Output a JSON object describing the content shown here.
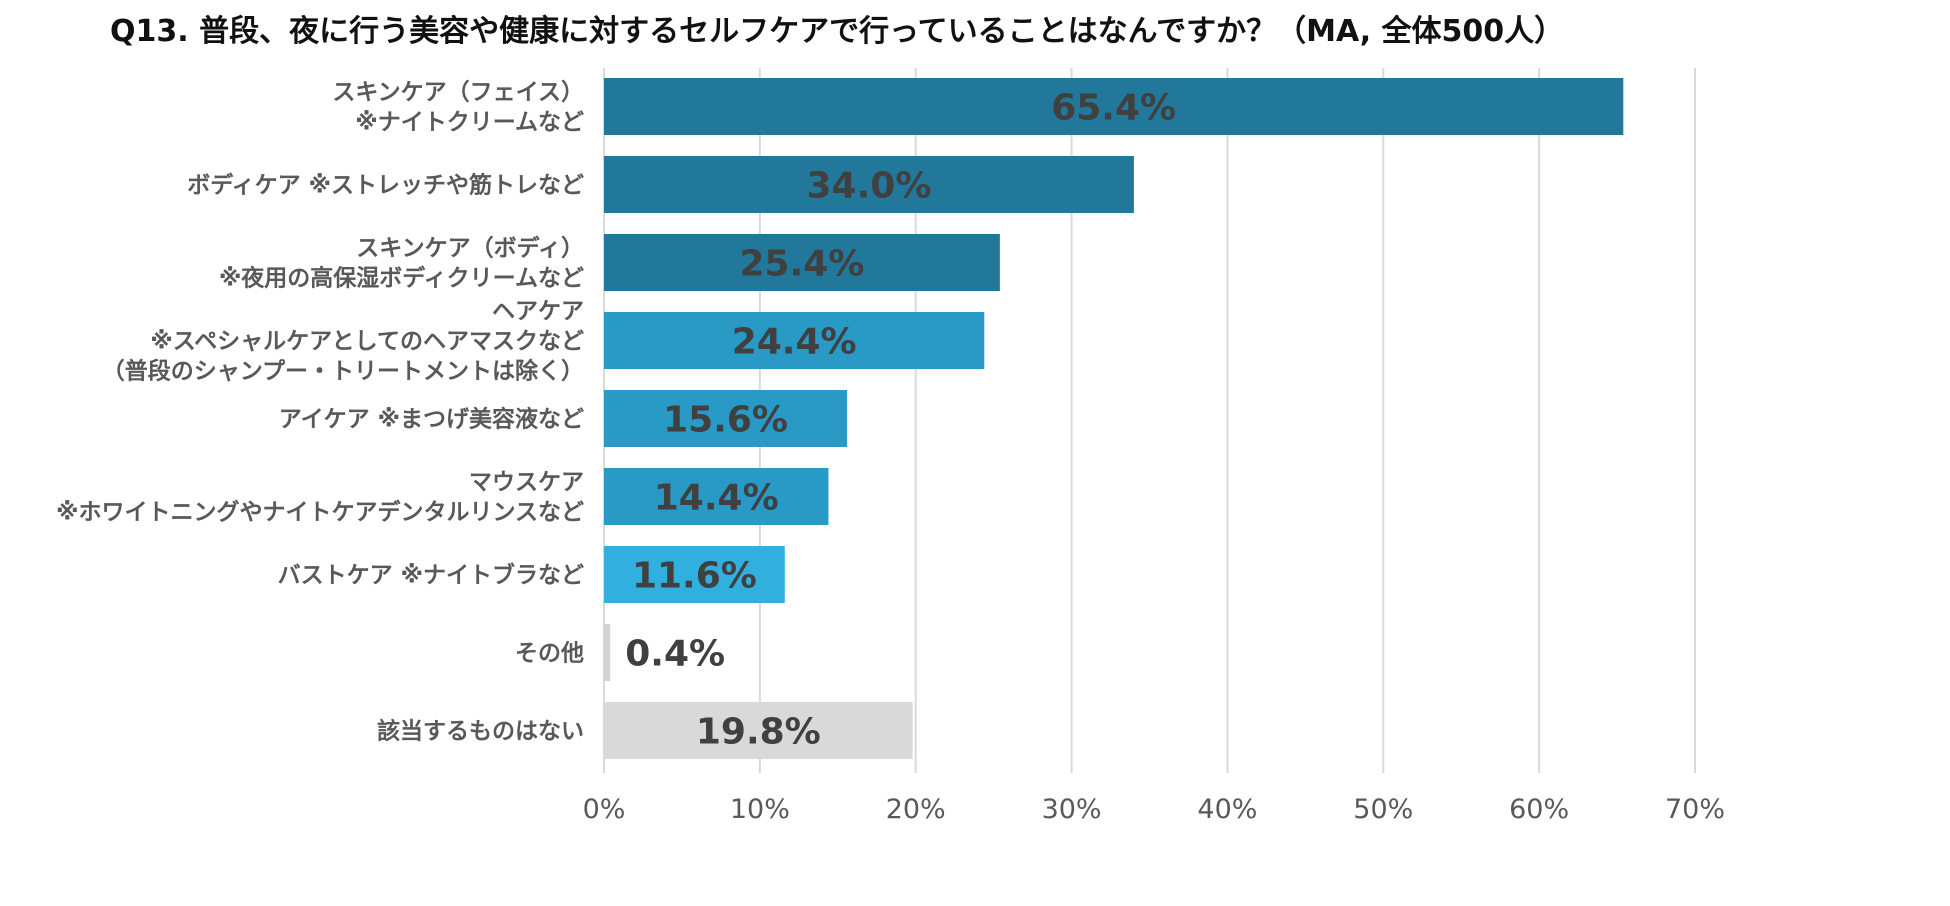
{
  "chart_data": {
    "type": "bar",
    "orientation": "horizontal",
    "title": "Q13. 普段、夜に行う美容や健康に対するセルフケアで行っていることはなんですか？（MA, 全体500人）",
    "categories": [
      [
        "スキンケア（フェイス）",
        "※ナイトクリームなど"
      ],
      [
        "ボディケア ※ストレッチや筋トレなど"
      ],
      [
        "スキンケア（ボディ）",
        "※夜用の高保湿ボディクリームなど"
      ],
      [
        "ヘアケア",
        "※スペシャルケアとしてのヘアマスクなど",
        "（普段のシャンプー・トリートメントは除く）"
      ],
      [
        "アイケア ※まつげ美容液など"
      ],
      [
        "マウスケア",
        "※ホワイトニングやナイトケアデンタルリンスなど"
      ],
      [
        "バストケア ※ナイトブラなど"
      ],
      [
        "その他"
      ],
      [
        "該当するものはない"
      ]
    ],
    "values": [
      65.4,
      34.0,
      25.4,
      24.4,
      15.6,
      14.4,
      11.6,
      0.4,
      19.8
    ],
    "data_labels": [
      "65.4%",
      "34.0%",
      "25.4%",
      "24.4%",
      "15.6%",
      "14.4%",
      "11.6%",
      "0.4%",
      "19.8%"
    ],
    "bar_colors": [
      "#21789a",
      "#21789a",
      "#21789a",
      "#2999c6",
      "#2999c6",
      "#2999c6",
      "#31b0e0",
      "#d3d3d3",
      "#d9d9d9"
    ],
    "xlim": [
      0,
      70
    ],
    "xticks": [
      0,
      10,
      20,
      30,
      40,
      50,
      60,
      70
    ],
    "xtick_labels": [
      "0%",
      "10%",
      "20%",
      "30%",
      "40%",
      "50%",
      "60%",
      "70%"
    ],
    "xlabel": "",
    "ylabel": "",
    "grid": "vertical",
    "legend": "none"
  },
  "colors": {
    "label_text": "#595959",
    "value_text": "#404040",
    "grid": "#d9d9d9",
    "tick_text": "#595959"
  }
}
